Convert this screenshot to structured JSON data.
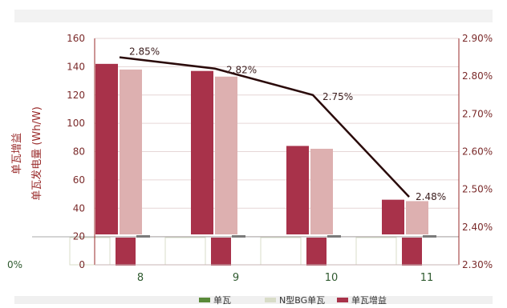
{
  "chart_data": {
    "type": "bar",
    "title": "",
    "categories": [
      "8",
      "9",
      "10",
      "11"
    ],
    "left_axis": {
      "label": "单瓦发电量 (Wh/W)",
      "ylim": [
        0,
        160
      ],
      "ticks": [
        0,
        20,
        40,
        60,
        80,
        100,
        120,
        140,
        160
      ]
    },
    "right_axis": {
      "ylim": [
        2.3,
        2.9
      ],
      "ticks": [
        "2.30%",
        "2.40%",
        "2.50%",
        "2.60%",
        "2.70%",
        "2.80%",
        "2.90%"
      ]
    },
    "gain_axis": {
      "label": "单瓦增益",
      "ticks": [
        "0%"
      ]
    },
    "series": [
      {
        "name": "单瓦",
        "type": "bar",
        "axis": "left",
        "color": "#a8324a",
        "values": [
          142,
          137,
          84,
          46
        ]
      },
      {
        "name": "N型BG单瓦",
        "type": "bar",
        "axis": "left",
        "color": "#ddb0b0",
        "values": [
          138,
          133,
          82,
          45
        ]
      },
      {
        "name": "单瓦增益",
        "type": "bar",
        "axis": "gain",
        "color": "#a8324a",
        "values": [
          0.35,
          0.35,
          0.35,
          0.35
        ]
      },
      {
        "name": "",
        "type": "bar",
        "axis": "gain",
        "color": "#7a7a7a",
        "values": [
          0.02,
          0.02,
          0.02,
          0.02
        ]
      },
      {
        "name": "",
        "type": "line",
        "axis": "right",
        "color": "#2a0a0a",
        "values": [
          2.85,
          2.82,
          2.75,
          2.48
        ],
        "labels": [
          "2.85%",
          "2.82%",
          "2.75%",
          "2.48%"
        ]
      }
    ],
    "legend": {
      "position": "bottom",
      "entries": [
        {
          "label": "单瓦",
          "color": "#5a8a3a"
        },
        {
          "label": "N型BG单瓦",
          "color": "#d8dcc8"
        },
        {
          "label": "单瓦增益",
          "color": "#a8324a"
        }
      ]
    },
    "grid": true
  }
}
